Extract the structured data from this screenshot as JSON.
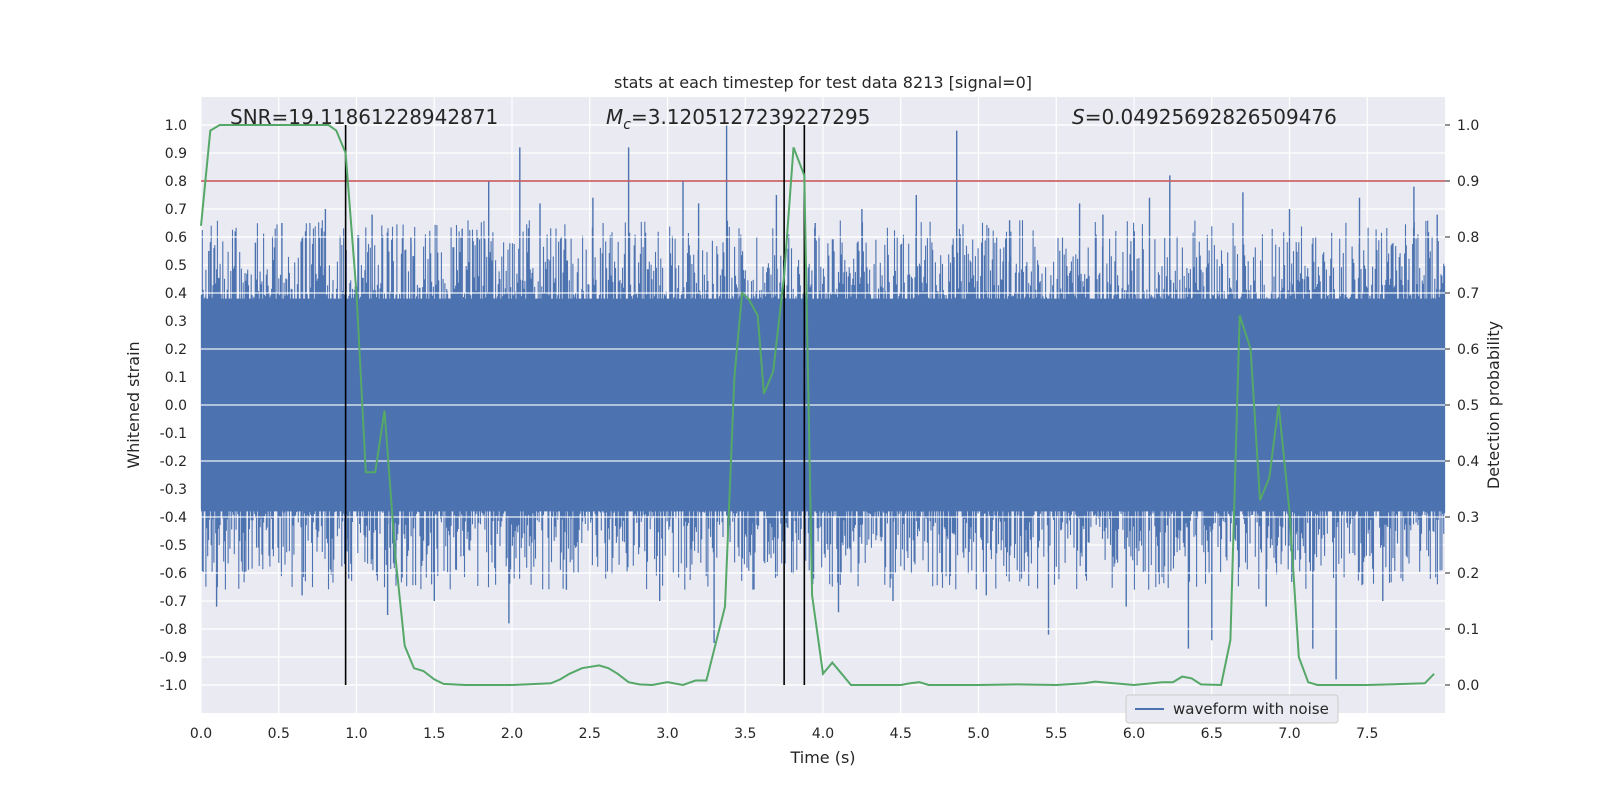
{
  "chart_data": {
    "type": "line",
    "title": "stats at each timestep for test data 8213 [signal=0]",
    "xlabel": "Time (s)",
    "ylabel": "Whitened strain",
    "y2label": "Detection probability",
    "xlim": [
      0,
      8
    ],
    "ylim": [
      -1.1,
      1.1
    ],
    "y2lim": [
      -0.05,
      1.05
    ],
    "grid": true,
    "x_ticks": [
      "0.0",
      "0.5",
      "1.0",
      "1.5",
      "2.0",
      "2.5",
      "3.0",
      "3.5",
      "4.0",
      "4.5",
      "5.0",
      "5.5",
      "6.0",
      "6.5",
      "7.0",
      "7.5"
    ],
    "y_ticks": [
      "1.0",
      "0.9",
      "0.8",
      "0.7",
      "0.6",
      "0.5",
      "0.4",
      "0.3",
      "0.2",
      "0.1",
      "0.0",
      "-0.1",
      "-0.2",
      "-0.3",
      "-0.4",
      "-0.5",
      "-0.6",
      "-0.7",
      "-0.8",
      "-0.9",
      "-1.0"
    ],
    "y2_ticks": [
      "1.0",
      "0.9",
      "0.8",
      "0.7",
      "0.6",
      "0.5",
      "0.4",
      "0.3",
      "0.2",
      "0.1",
      "0.0"
    ],
    "annotations": {
      "snr": "SNR=19.11861228942871",
      "mc_symbol": "M",
      "mc_sub": "c",
      "mc_value": "=3.1205127239227295",
      "s_symbol": "S",
      "s_value": "=0.04925692826509476"
    },
    "legend": {
      "label": "waveform with noise",
      "placement": "lower-right"
    },
    "threshold": {
      "value": 0.9,
      "axis": "y2",
      "color": "#c44e52"
    },
    "vertical_markers": [
      0.93,
      3.75,
      3.88
    ],
    "noise_envelope": {
      "core_range": [
        -0.38,
        0.38
      ],
      "peak_times": [
        0.05,
        0.1,
        0.22,
        0.28,
        0.35,
        0.52,
        0.65,
        0.8,
        0.95,
        1.1,
        1.2,
        1.35,
        1.5,
        1.68,
        1.85,
        1.98,
        2.05,
        2.18,
        2.35,
        2.52,
        2.75,
        2.95,
        3.1,
        3.2,
        3.3,
        3.38,
        3.55,
        3.7,
        3.95,
        4.1,
        4.25,
        4.45,
        4.6,
        4.86,
        5.05,
        5.2,
        5.45,
        5.65,
        5.8,
        5.95,
        6.1,
        6.23,
        6.35,
        6.5,
        6.7,
        6.85,
        7.0,
        7.15,
        7.3,
        7.45,
        7.6,
        7.8,
        7.95
      ],
      "peak_values": [
        0.55,
        -0.72,
        0.62,
        -0.6,
        0.58,
        0.65,
        -0.68,
        0.7,
        -0.62,
        0.68,
        -0.75,
        0.6,
        -0.7,
        0.63,
        0.8,
        -0.78,
        0.92,
        0.72,
        -0.66,
        0.74,
        0.92,
        -0.7,
        0.8,
        0.72,
        -0.85,
        1.0,
        -0.66,
        0.75,
        0.65,
        -0.74,
        0.7,
        -0.7,
        0.75,
        0.98,
        -0.68,
        0.66,
        -0.82,
        0.72,
        0.68,
        -0.72,
        0.74,
        0.82,
        -0.87,
        -0.84,
        0.76,
        -0.72,
        0.7,
        -0.87,
        -0.98,
        0.74,
        -0.7,
        0.78,
        0.68
      ],
      "color": "#4c72b0"
    },
    "series": [
      {
        "name": "waveform with noise",
        "axis": "y",
        "color": "#4c72b0",
        "representation": "dense noise envelope"
      },
      {
        "name": "Detection probability",
        "axis": "y2",
        "color": "#55a868",
        "x": [
          0.0,
          0.06,
          0.12,
          0.25,
          0.5,
          0.75,
          0.82,
          0.87,
          0.93,
          1.0,
          1.06,
          1.12,
          1.18,
          1.25,
          1.31,
          1.37,
          1.43,
          1.5,
          1.56,
          1.7,
          2.0,
          2.25,
          2.31,
          2.37,
          2.45,
          2.56,
          2.62,
          2.68,
          2.75,
          2.82,
          2.9,
          3.0,
          3.1,
          3.18,
          3.25,
          3.37,
          3.43,
          3.48,
          3.52,
          3.58,
          3.62,
          3.68,
          3.75,
          3.81,
          3.88,
          3.93,
          4.0,
          4.06,
          4.12,
          4.18,
          4.25,
          4.5,
          4.56,
          4.62,
          4.68,
          4.75,
          5.0,
          5.25,
          5.5,
          5.68,
          5.75,
          6.0,
          6.18,
          6.25,
          6.31,
          6.37,
          6.43,
          6.56,
          6.62,
          6.68,
          6.75,
          6.81,
          6.87,
          6.93,
          7.0,
          7.06,
          7.12,
          7.18,
          7.25,
          7.5,
          7.87,
          7.93
        ],
        "y": [
          0.82,
          0.99,
          1.0,
          1.0,
          1.0,
          1.0,
          1.0,
          0.99,
          0.95,
          0.7,
          0.38,
          0.38,
          0.49,
          0.23,
          0.07,
          0.03,
          0.025,
          0.01,
          0.002,
          0.0,
          0.0,
          0.003,
          0.01,
          0.02,
          0.03,
          0.035,
          0.03,
          0.02,
          0.005,
          0.001,
          0.0,
          0.005,
          0.0,
          0.008,
          0.008,
          0.14,
          0.55,
          0.7,
          0.69,
          0.66,
          0.52,
          0.56,
          0.73,
          0.96,
          0.91,
          0.16,
          0.02,
          0.04,
          0.02,
          0.0,
          0.0,
          0.0,
          0.003,
          0.005,
          0.0,
          0.0,
          0.0,
          0.001,
          0.0,
          0.003,
          0.006,
          0.0,
          0.005,
          0.005,
          0.015,
          0.012,
          0.001,
          0.0,
          0.08,
          0.66,
          0.6,
          0.33,
          0.37,
          0.5,
          0.31,
          0.05,
          0.005,
          0.0,
          0.0,
          0.0,
          0.003,
          0.02
        ]
      }
    ]
  }
}
